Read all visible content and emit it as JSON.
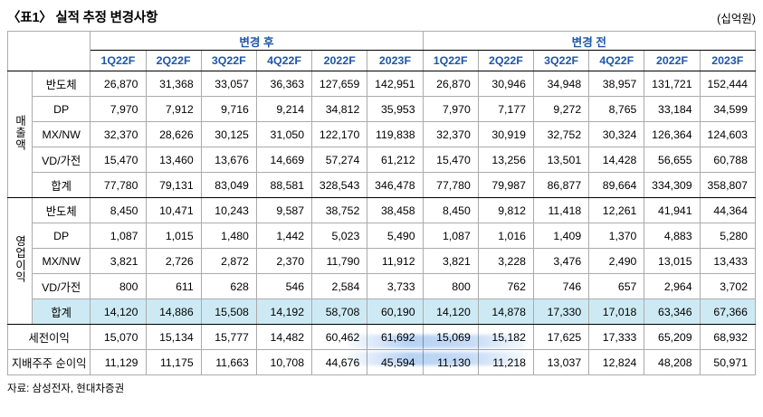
{
  "title": "〈표1〉 실적 추정 변경사항",
  "unit": "(십억원)",
  "footer": "자료: 삼성전자, 현대차증권",
  "colors": {
    "header_blue": "#1d57a8",
    "highlight_cyan": "#cdeaf4",
    "grid_gray": "#ababab",
    "line_black": "#000000"
  },
  "table": {
    "col_groups": [
      {
        "label": "변경 후"
      },
      {
        "label": "변경 전"
      }
    ],
    "quarters": [
      "1Q22F",
      "2Q22F",
      "3Q22F",
      "4Q22F",
      "2022F",
      "2023F"
    ],
    "groups": [
      {
        "name": "매출액",
        "rows": [
          {
            "label": "반도체",
            "after": [
              "26,870",
              "31,368",
              "33,057",
              "36,363",
              "127,659",
              "142,951"
            ],
            "before": [
              "26,870",
              "30,946",
              "34,948",
              "38,957",
              "131,721",
              "152,444"
            ]
          },
          {
            "label": "DP",
            "after": [
              "7,970",
              "7,912",
              "9,716",
              "9,214",
              "34,812",
              "35,953"
            ],
            "before": [
              "7,970",
              "7,177",
              "9,272",
              "8,765",
              "33,184",
              "34,599"
            ]
          },
          {
            "label": "MX/NW",
            "after": [
              "32,370",
              "28,626",
              "30,125",
              "31,050",
              "122,170",
              "119,838"
            ],
            "before": [
              "32,370",
              "30,919",
              "32,752",
              "30,324",
              "126,364",
              "124,603"
            ]
          },
          {
            "label": "VD/가전",
            "after": [
              "15,470",
              "13,460",
              "13,676",
              "14,669",
              "57,274",
              "61,212"
            ],
            "before": [
              "15,470",
              "13,256",
              "13,501",
              "14,428",
              "56,655",
              "60,788"
            ]
          },
          {
            "label": "합계",
            "after": [
              "77,780",
              "79,131",
              "83,049",
              "88,581",
              "328,543",
              "346,478"
            ],
            "before": [
              "77,780",
              "79,987",
              "86,877",
              "89,664",
              "334,309",
              "358,807"
            ]
          }
        ]
      },
      {
        "name": "영업이익",
        "rows": [
          {
            "label": "반도체",
            "after": [
              "8,450",
              "10,471",
              "10,243",
              "9,587",
              "38,752",
              "38,458"
            ],
            "before": [
              "8,450",
              "9,812",
              "11,418",
              "12,261",
              "41,941",
              "44,364"
            ]
          },
          {
            "label": "DP",
            "after": [
              "1,087",
              "1,015",
              "1,480",
              "1,442",
              "5,023",
              "5,490"
            ],
            "before": [
              "1,087",
              "1,016",
              "1,409",
              "1,370",
              "4,883",
              "5,280"
            ]
          },
          {
            "label": "MX/NW",
            "after": [
              "3,821",
              "2,726",
              "2,872",
              "2,370",
              "11,790",
              "11,912"
            ],
            "before": [
              "3,821",
              "3,228",
              "3,476",
              "2,490",
              "13,015",
              "13,433"
            ]
          },
          {
            "label": "VD/가전",
            "after": [
              "800",
              "611",
              "628",
              "546",
              "2,584",
              "3,733"
            ],
            "before": [
              "800",
              "762",
              "746",
              "657",
              "2,964",
              "3,702"
            ]
          },
          {
            "label": "합계",
            "after": [
              "14,120",
              "14,886",
              "15,508",
              "14,192",
              "58,708",
              "60,190"
            ],
            "before": [
              "14,120",
              "14,878",
              "17,330",
              "17,018",
              "63,346",
              "67,366"
            ],
            "highlight": true
          }
        ]
      }
    ],
    "summary_rows": [
      {
        "label": "세전이익",
        "after": [
          "15,070",
          "15,134",
          "15,777",
          "14,482",
          "60,462",
          "61,692"
        ],
        "before": [
          "15,069",
          "15,182",
          "17,625",
          "17,333",
          "65,209",
          "68,932"
        ]
      },
      {
        "label": "지배주주 순이익",
        "after": [
          "11,129",
          "11,175",
          "11,663",
          "10,708",
          "44,676",
          "45,594"
        ],
        "before": [
          "11,130",
          "11,218",
          "13,037",
          "12,824",
          "48,208",
          "50,971"
        ]
      }
    ]
  }
}
